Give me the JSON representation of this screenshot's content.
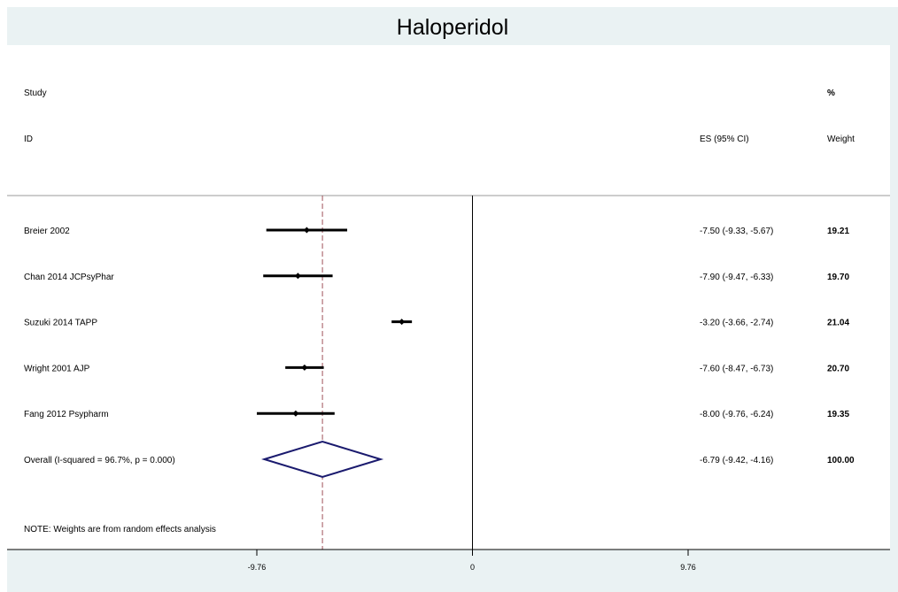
{
  "chart_data": {
    "type": "forest",
    "title": "Haloperidol",
    "header": {
      "study_line1": "Study",
      "study_line2": "ID",
      "es_label": "ES (95% CI)",
      "weight_line1": "%",
      "weight_line2": "Weight"
    },
    "studies": [
      {
        "name": "Breier 2002",
        "es": -7.5,
        "lower": -9.33,
        "upper": -5.67,
        "es_text": "-7.50 (-9.33, -5.67)",
        "weight": 19.21,
        "weight_text": "19.21"
      },
      {
        "name": "Chan 2014 JCPsyPhar",
        "es": -7.9,
        "lower": -9.47,
        "upper": -6.33,
        "es_text": "-7.90 (-9.47, -6.33)",
        "weight": 19.7,
        "weight_text": "19.70"
      },
      {
        "name": "Suzuki 2014 TAPP",
        "es": -3.2,
        "lower": -3.66,
        "upper": -2.74,
        "es_text": "-3.20 (-3.66, -2.74)",
        "weight": 21.04,
        "weight_text": "21.04"
      },
      {
        "name": "Wright 2001 AJP",
        "es": -7.6,
        "lower": -8.47,
        "upper": -6.73,
        "es_text": "-7.60 (-8.47, -6.73)",
        "weight": 20.7,
        "weight_text": "20.70"
      },
      {
        "name": "Fang 2012 Psypharm",
        "es": -8.0,
        "lower": -9.76,
        "upper": -6.24,
        "es_text": "-8.00 (-9.76, -6.24)",
        "weight": 19.35,
        "weight_text": "19.35"
      }
    ],
    "overall": {
      "name": "Overall  (I-squared = 96.7%, p = 0.000)",
      "es": -6.79,
      "lower": -9.42,
      "upper": -4.16,
      "es_text": "-6.79 (-9.42, -4.16)",
      "weight_text": "100.00"
    },
    "note": "NOTE: Weights are from random effects analysis",
    "xticks": [
      -9.76,
      0,
      9.76
    ],
    "xtick_labels": [
      "-9.76",
      "0",
      "9.76"
    ],
    "xlim": [
      -12.76,
      19.06
    ],
    "null_line": 0,
    "colors": {
      "frame_bg": "#eaf2f3",
      "plot_bg": "#ffffff",
      "ci_line": "#000000",
      "point": "#000000",
      "diamond": "#1a1a6e",
      "overall_line": "#a0525a",
      "null_line": "#000000"
    }
  }
}
